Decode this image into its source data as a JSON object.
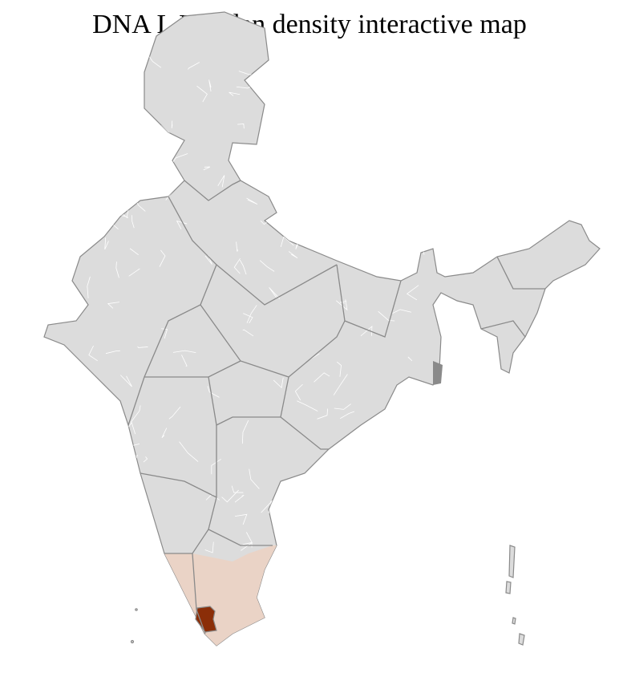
{
  "title": "DNA L Ulladan density interactive map",
  "colors": {
    "land": "#dcdcdc",
    "state_border": "#8a8a8a",
    "district_border": "#ffffff",
    "low_density": "#ead3c6",
    "high_density": "#8b2e08"
  }
}
